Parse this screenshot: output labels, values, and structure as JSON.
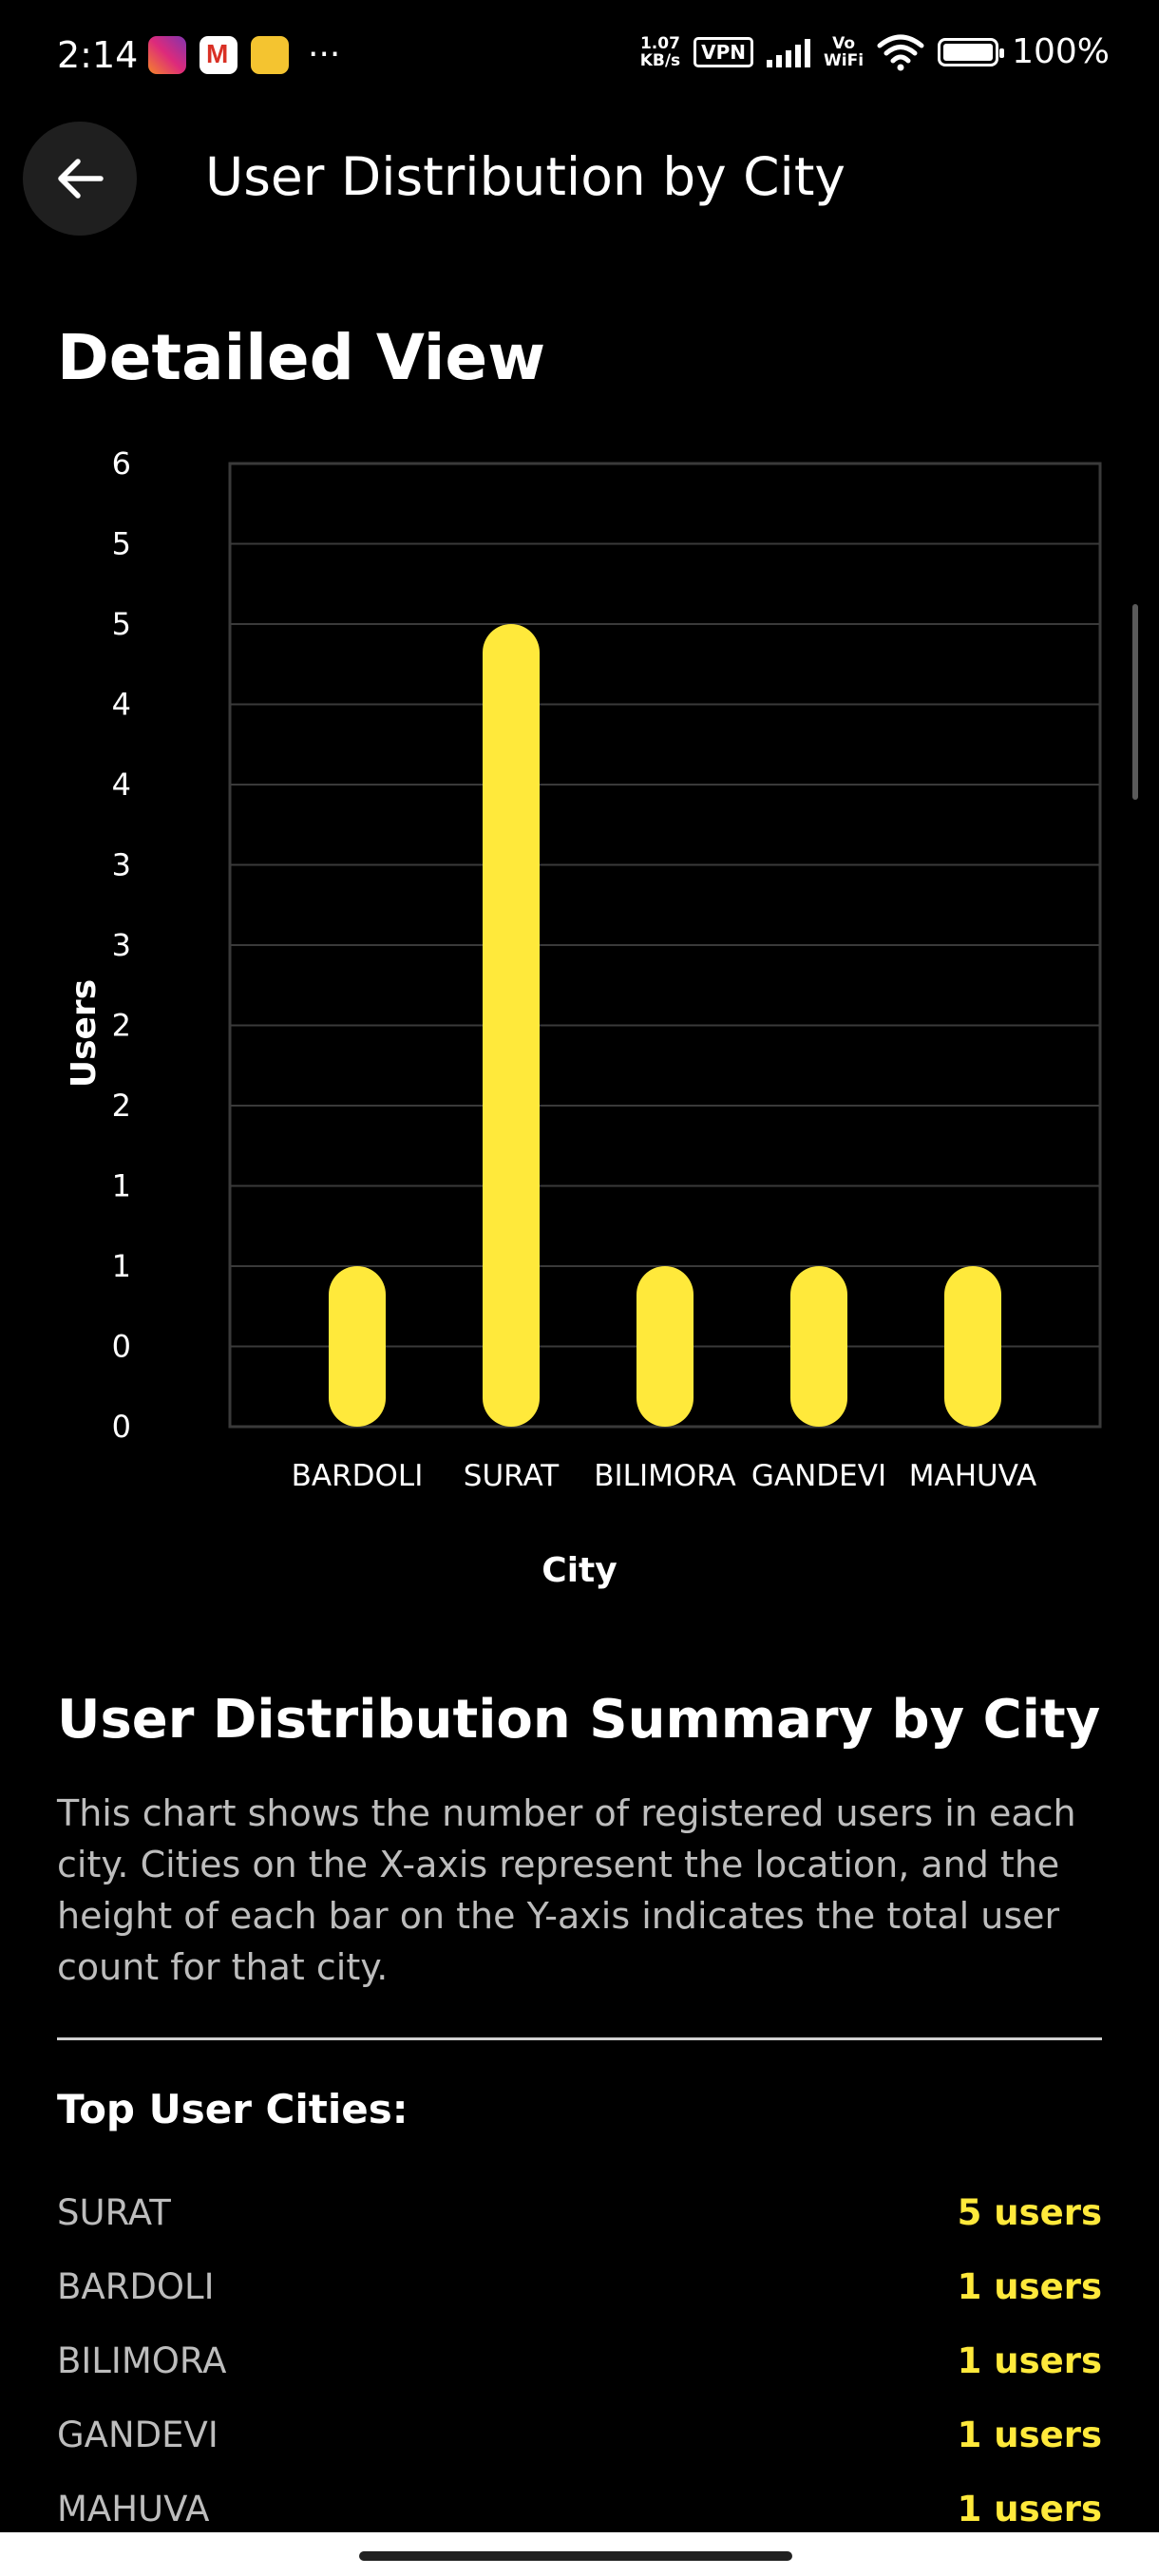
{
  "status_bar": {
    "time": "2:14",
    "notification_icons": [
      "instagram-icon",
      "gmail-icon",
      "notes-icon"
    ],
    "more": "···",
    "net_speed_value": "1.07",
    "net_speed_unit": "KB/s",
    "vpn": "VPN",
    "vowifi_top": "Vo",
    "vowifi_bottom": "WiFi",
    "battery": "100%"
  },
  "header": {
    "back_icon": "arrow-left-icon",
    "title": "User Distribution by City"
  },
  "section_title": "Detailed View",
  "chart_data": {
    "type": "bar",
    "title": "",
    "xlabel": "City",
    "ylabel": "Users",
    "categories": [
      "BARDOLI",
      "SURAT",
      "BILIMORA",
      "GANDEVI",
      "MAHUVA"
    ],
    "values": [
      1,
      5,
      1,
      1,
      1
    ],
    "ylim": [
      0,
      6
    ],
    "y_ticks": [
      0,
      0.5,
      1,
      1.5,
      2,
      2.5,
      3,
      3.5,
      4,
      4.5,
      5,
      5.5,
      6
    ],
    "y_tick_labels": [
      "0",
      "0",
      "1",
      "1",
      "2",
      "2",
      "3",
      "3",
      "4",
      "4",
      "5",
      "5",
      "6"
    ],
    "grid": true,
    "colors": {
      "bar": "#ffe93b",
      "grid": "#3a3a3a",
      "background": "#000000"
    }
  },
  "summary": {
    "title": "User Distribution Summary by City",
    "text": "This chart shows the number of registered users in each city. Cities on the X-axis represent the location, and the height of each bar on the Y-axis indicates the total user count for that city."
  },
  "top_cities": {
    "title": "Top User Cities:",
    "items": [
      {
        "city": "SURAT",
        "count": "5 users"
      },
      {
        "city": "BARDOLI",
        "count": "1 users"
      },
      {
        "city": "BILIMORA",
        "count": "1 users"
      },
      {
        "city": "GANDEVI",
        "count": "1 users"
      },
      {
        "city": "MAHUVA",
        "count": "1 users"
      }
    ]
  }
}
